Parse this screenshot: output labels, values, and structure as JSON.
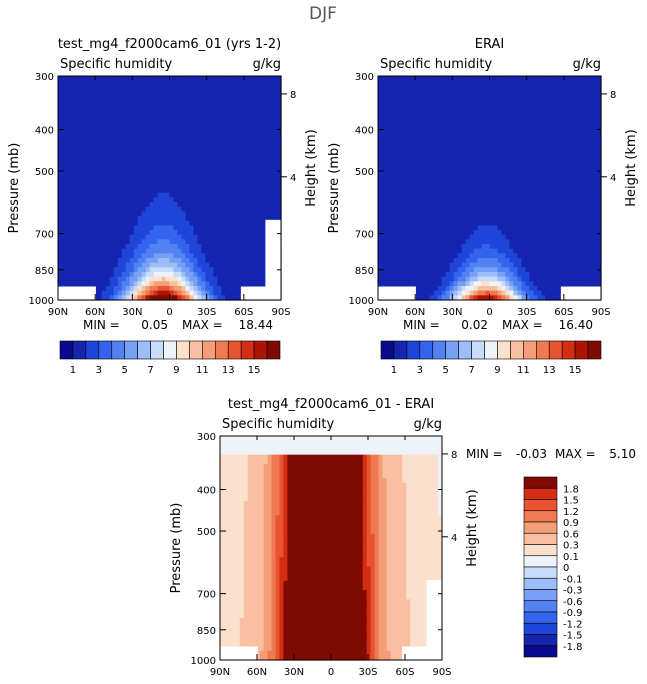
{
  "page_title": "DJF",
  "chart_data": [
    {
      "type": "heatmap",
      "title": "test_mg4_f2000cam6_01 (yrs 1-2)",
      "subtitle_left": "Specific humidity",
      "subtitle_right": "g/kg",
      "ylabel": "Pressure (mb)",
      "ylabel_right": "Height (km)",
      "y_ticks": [
        "300",
        "400",
        "500",
        "700",
        "850",
        "1000"
      ],
      "y_ticks_right": [
        "8",
        "4"
      ],
      "x_ticks": [
        "90N",
        "60N",
        "30N",
        "0",
        "30S",
        "60S",
        "90S"
      ],
      "xlim": [
        -90,
        90
      ],
      "ylim": [
        1000,
        300
      ],
      "min_label": "MIN =",
      "min_value": "0.05",
      "max_label": "MAX =",
      "max_value": "18.44",
      "colorbar_labels": [
        "1",
        "3",
        "5",
        "7",
        "9",
        "11",
        "13",
        "15"
      ],
      "levels": [
        0,
        1,
        2,
        3,
        4,
        5,
        6,
        7,
        8,
        9,
        10,
        11,
        12,
        13,
        14,
        15
      ],
      "field": {
        "peak": 18.4,
        "center_lat": -5,
        "width_surface": 30,
        "width_top": 22,
        "p_scale": 150,
        "floor": 0.05
      },
      "colors": [
        "#0a0a8c",
        "#1525b0",
        "#1f45d8",
        "#3464ee",
        "#5282f2",
        "#769ff5",
        "#9cbdf7",
        "#c6dcf8",
        "#eef3fa",
        "#fbe0cd",
        "#f8c0a0",
        "#f49e78",
        "#ef7a52",
        "#e85330",
        "#d42d14",
        "#ac1505",
        "#7e0a02"
      ]
    },
    {
      "type": "heatmap",
      "title": "ERAI",
      "subtitle_left": "Specific humidity",
      "subtitle_right": "g/kg",
      "ylabel": "Pressure (mb)",
      "ylabel_right": "Height (km)",
      "y_ticks": [
        "300",
        "400",
        "500",
        "700",
        "850",
        "1000"
      ],
      "y_ticks_right": [
        "8",
        "4"
      ],
      "x_ticks": [
        "90N",
        "60N",
        "30N",
        "0",
        "30S",
        "60S",
        "90S"
      ],
      "xlim": [
        -90,
        90
      ],
      "ylim": [
        1000,
        300
      ],
      "min_label": "MIN =",
      "min_value": "0.02",
      "max_label": "MAX =",
      "max_value": "16.40",
      "colorbar_labels": [
        "1",
        "3",
        "5",
        "7",
        "9",
        "11",
        "13",
        "15"
      ],
      "levels": [
        0,
        1,
        2,
        3,
        4,
        5,
        6,
        7,
        8,
        9,
        10,
        11,
        12,
        13,
        14,
        15
      ],
      "field": {
        "peak": 16.4,
        "center_lat": -2,
        "width_surface": 28,
        "width_top": 14,
        "p_scale": 120,
        "floor": 0.02
      },
      "colors": [
        "#0a0a8c",
        "#1525b0",
        "#1f45d8",
        "#3464ee",
        "#5282f2",
        "#769ff5",
        "#9cbdf7",
        "#c6dcf8",
        "#eef3fa",
        "#fbe0cd",
        "#f8c0a0",
        "#f49e78",
        "#ef7a52",
        "#e85330",
        "#d42d14",
        "#ac1505",
        "#7e0a02"
      ]
    },
    {
      "type": "heatmap",
      "title": "test_mg4_f2000cam6_01 - ERAI",
      "subtitle_left": "Specific humidity",
      "subtitle_right": "g/kg",
      "ylabel": "Pressure (mb)",
      "ylabel_right": "Height (km)",
      "y_ticks": [
        "300",
        "400",
        "500",
        "700",
        "850",
        "1000"
      ],
      "y_ticks_right": [
        "8",
        "4"
      ],
      "x_ticks": [
        "90N",
        "60N",
        "30N",
        "0",
        "30S",
        "60S",
        "90S"
      ],
      "xlim": [
        -90,
        90
      ],
      "ylim": [
        1000,
        300
      ],
      "min_label": "MIN =",
      "min_value": "-0.03",
      "max_label": "MAX =",
      "max_value": "5.10",
      "colorbar_labels": [
        "1.8",
        "1.5",
        "1.2",
        "0.9",
        "0.6",
        "0.3",
        "0.1",
        "0",
        "-0.1",
        "-0.3",
        "-0.6",
        "-0.9",
        "-1.2",
        "-1.5",
        "-1.8"
      ],
      "levels": [
        -1.8,
        -1.5,
        -1.2,
        -0.9,
        -0.6,
        -0.3,
        -0.1,
        0,
        0.1,
        0.3,
        0.6,
        0.9,
        1.2,
        1.5,
        1.8
      ],
      "field": {
        "peak": 5.1,
        "center_lat": -5,
        "width_surface": 30,
        "width_top": 30,
        "p_scale": 400,
        "floor": -0.03
      },
      "colors": [
        "#0a0a8c",
        "#1525b0",
        "#1f45d8",
        "#3464ee",
        "#5282f2",
        "#769ff5",
        "#9cbdf7",
        "#c6dcf8",
        "#eef3fa",
        "#fbe0cd",
        "#f8c0a0",
        "#f49e78",
        "#ef7a52",
        "#e85330",
        "#d42d14",
        "#7e0a02"
      ]
    }
  ]
}
